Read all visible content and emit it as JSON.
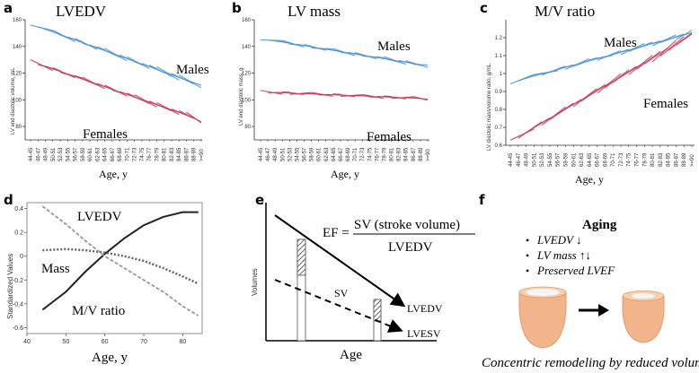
{
  "chart_data": [
    {
      "panel": "a",
      "type": "line",
      "title": "LVEDV",
      "xlabel": "Age, y",
      "ylabel": "LV end diastolic volume, mL",
      "ylim": [
        70,
        160
      ],
      "yticks": [
        80,
        100,
        120,
        140,
        160
      ],
      "categories": [
        "44-45",
        "46-47",
        "48-49",
        "50-51",
        "52-53",
        "54-55",
        "56-57",
        "58-59",
        "60-61",
        "62-63",
        "64-65",
        "66-67",
        "68-69",
        "70-71",
        "72-73",
        "74-75",
        "76-77",
        "78-79",
        "80-81",
        "82-83",
        "84-85",
        "86-87",
        "88-89",
        ">=90"
      ],
      "series": [
        {
          "name": "Males",
          "color": "#4f93cf",
          "start": 157,
          "end": 112
        },
        {
          "name": "Females",
          "color": "#c43c5c",
          "start": 129,
          "end": 86
        }
      ]
    },
    {
      "panel": "b",
      "type": "line",
      "title": "LV mass",
      "xlabel": "Age, y",
      "ylabel": "LV end diastolic mass, g",
      "ylim": [
        70,
        160
      ],
      "yticks": [
        80,
        100,
        120,
        140,
        160
      ],
      "categories": [
        "44-45",
        "46-47",
        "48-49",
        "50-51",
        "52-53",
        "54-55",
        "56-57",
        "58-59",
        "60-61",
        "62-63",
        "64-65",
        "66-67",
        "68-69",
        "70-71",
        "72-73",
        "74-75",
        "76-77",
        "78-79",
        "80-81",
        "82-83",
        "84-85",
        "86-87",
        "88-89",
        ">=90"
      ],
      "series": [
        {
          "name": "Males",
          "color": "#4f93cf",
          "start": 146,
          "end": 126
        },
        {
          "name": "Females",
          "color": "#c43c5c",
          "start": 106,
          "end": 101
        }
      ]
    },
    {
      "panel": "c",
      "type": "line",
      "title": "M/V ratio",
      "xlabel": "Age, y",
      "ylabel": "LV diastolic mass/volume ratio, g/mL",
      "ylim": [
        0.6,
        1.3
      ],
      "yticks": [
        0.6,
        0.7,
        0.8,
        0.9,
        1.0,
        1.1,
        1.2
      ],
      "categories": [
        "44-45",
        "46-47",
        "48-49",
        "50-51",
        "52-53",
        "54-55",
        "56-57",
        "58-59",
        "60-61",
        "62-63",
        "64-65",
        "66-67",
        "68-69",
        "70-71",
        "72-73",
        "74-75",
        "76-77",
        "78-79",
        "80-81",
        "82-83",
        "84-85",
        "86-87",
        "88-89",
        ">=90"
      ],
      "series": [
        {
          "name": "Males",
          "color": "#4f93cf",
          "start": 0.95,
          "end": 1.22
        },
        {
          "name": "Females",
          "color": "#c43c5c",
          "start": 0.62,
          "end": 1.2
        }
      ]
    },
    {
      "panel": "d",
      "type": "line",
      "title": "",
      "xlabel": "Age, y",
      "ylabel": "Standardized Values",
      "xlim": [
        40,
        85
      ],
      "ylim": [
        -0.65,
        0.45
      ],
      "xticks": [
        40,
        50,
        60,
        70,
        80
      ],
      "yticks": [
        -0.6,
        -0.4,
        -0.2,
        0,
        0.2,
        0.4
      ],
      "series": [
        {
          "name": "LVEDV",
          "style": "solid",
          "x": [
            44,
            50,
            55,
            60,
            65,
            70,
            75,
            80,
            84
          ],
          "y": [
            -0.45,
            -0.3,
            -0.13,
            0.02,
            0.15,
            0.26,
            0.33,
            0.37,
            0.37
          ]
        },
        {
          "name": "Mass",
          "style": "dotted",
          "x": [
            44,
            50,
            55,
            60,
            65,
            70,
            75,
            80,
            84
          ],
          "y": [
            0.05,
            0.06,
            0.05,
            0.03,
            0.0,
            -0.04,
            -0.1,
            -0.17,
            -0.23
          ]
        },
        {
          "name": "M/V ratio",
          "style": "dashed",
          "x": [
            44,
            50,
            55,
            60,
            65,
            70,
            75,
            80,
            84
          ],
          "y": [
            0.42,
            0.27,
            0.13,
            0.0,
            -0.1,
            -0.2,
            -0.3,
            -0.42,
            -0.5
          ]
        }
      ]
    }
  ],
  "panels": {
    "a": {
      "letter": "a",
      "title": "LVEDV",
      "males": "Males",
      "females": "Females"
    },
    "b": {
      "letter": "b",
      "title": "LV mass",
      "males": "Males",
      "females": "Females"
    },
    "c": {
      "letter": "c",
      "title": "M/V ratio",
      "males": "Males",
      "females": "Females"
    },
    "d": {
      "letter": "d",
      "lvedv": "LVEDV",
      "mass": "Mass",
      "mv": "M/V ratio"
    },
    "e": {
      "letter": "e",
      "ef_lhs": "EF =",
      "ef_num": "SV (stroke volume)",
      "ef_den": "LVEDV",
      "sv": "SV",
      "lvedv": "LVEDV",
      "lvesv": "LVESV",
      "ylabel": "Volumes",
      "xlabel": "Age"
    },
    "f": {
      "letter": "f",
      "heading": "Aging",
      "bullets": [
        "LVEDV ↓",
        "LV mass ↑↓",
        "Preserved LVEF"
      ],
      "caption": "Concentric remodeling by reduced volumes"
    }
  },
  "colors": {
    "male": "#4f93cf",
    "female": "#c43c5c",
    "heart_outer": "#f2b48a",
    "heart_inner": "#f7d0ad",
    "lumen": "#f5f5f5"
  }
}
